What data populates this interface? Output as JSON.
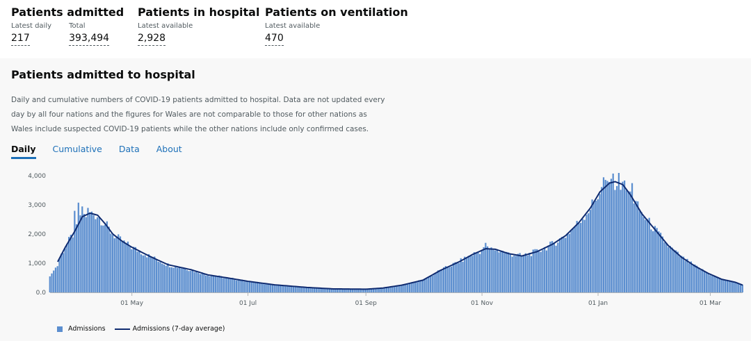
{
  "metrics": [
    {
      "title": "Patients admitted",
      "subs": [
        {
          "label": "Latest daily",
          "value": "217"
        },
        {
          "label": "Total",
          "value": "393,494"
        }
      ]
    },
    {
      "title": "Patients in hospital",
      "subs": [
        {
          "label": "Latest available",
          "value": "2,928"
        }
      ]
    },
    {
      "title": "Patients on ventilation",
      "subs": [
        {
          "label": "Latest available",
          "value": "470"
        }
      ]
    }
  ],
  "card": {
    "title": "Patients admitted to hospital",
    "description": "Daily and cumulative numbers of COVID-19 patients admitted to hospital. Data are not updated every day by all four nations and the figures for Wales are not comparable to those for other nations as Wales include suspected COVID-19 patients while the other nations include only confirmed cases.",
    "tabs": [
      {
        "label": "Daily",
        "active": true
      },
      {
        "label": "Cumulative",
        "active": false
      },
      {
        "label": "Data",
        "active": false
      },
      {
        "label": "About",
        "active": false
      }
    ]
  },
  "chart_data": {
    "type": "bar",
    "x_start": "2020-03-19",
    "x_end": "2021-03-18",
    "xticks": [
      {
        "date": "2020-05-01",
        "label": "01 May"
      },
      {
        "date": "2020-07-01",
        "label": "01 Jul"
      },
      {
        "date": "2020-09-01",
        "label": "01 Sep"
      },
      {
        "date": "2020-11-01",
        "label": "01 Nov"
      },
      {
        "date": "2021-01-01",
        "label": "01 Jan"
      },
      {
        "date": "2021-03-01",
        "label": "01 Mar"
      }
    ],
    "yticks": [
      {
        "value": 0,
        "label": "0.0"
      },
      {
        "value": 1000,
        "label": "1,000"
      },
      {
        "value": 2000,
        "label": "2,000"
      },
      {
        "value": 3000,
        "label": "3,000"
      },
      {
        "value": 4000,
        "label": "4,000"
      }
    ],
    "ylim": [
      0,
      4100
    ],
    "grid": false,
    "legend_position": "bottom-left",
    "average_key_dates": [
      "2020-03-23",
      "2020-03-27",
      "2020-04-01",
      "2020-04-05",
      "2020-04-09",
      "2020-04-13",
      "2020-04-17",
      "2020-04-21",
      "2020-04-26",
      "2020-05-01",
      "2020-05-10",
      "2020-05-20",
      "2020-06-01",
      "2020-06-10",
      "2020-06-20",
      "2020-07-01",
      "2020-07-15",
      "2020-08-01",
      "2020-08-15",
      "2020-09-01",
      "2020-09-10",
      "2020-09-20",
      "2020-10-01",
      "2020-10-10",
      "2020-10-20",
      "2020-10-27",
      "2020-11-03",
      "2020-11-08",
      "2020-11-15",
      "2020-11-22",
      "2020-11-30",
      "2020-12-08",
      "2020-12-15",
      "2020-12-22",
      "2020-12-28",
      "2021-01-02",
      "2021-01-07",
      "2021-01-10",
      "2021-01-14",
      "2021-01-18",
      "2021-01-24",
      "2021-01-31",
      "2021-02-07",
      "2021-02-14",
      "2021-02-21",
      "2021-02-28",
      "2021-03-07",
      "2021-03-14",
      "2021-03-18"
    ],
    "average_key_values": [
      1050,
      1550,
      2100,
      2600,
      2720,
      2650,
      2350,
      2000,
      1750,
      1550,
      1250,
      950,
      780,
      600,
      500,
      380,
      260,
      170,
      120,
      110,
      150,
      250,
      420,
      750,
      1050,
      1300,
      1500,
      1480,
      1330,
      1250,
      1400,
      1650,
      1950,
      2400,
      2900,
      3450,
      3750,
      3800,
      3700,
      3350,
      2700,
      2150,
      1600,
      1200,
      900,
      650,
      450,
      350,
      250
    ],
    "bar_highlights": [
      {
        "date": "2020-04-01",
        "value": 2800
      },
      {
        "date": "2020-04-03",
        "value": 3080
      },
      {
        "date": "2020-04-05",
        "value": 2950
      },
      {
        "date": "2020-04-08",
        "value": 2900
      },
      {
        "date": "2020-11-03",
        "value": 1700
      },
      {
        "date": "2021-01-04",
        "value": 3950
      },
      {
        "date": "2021-01-08",
        "value": 3900
      },
      {
        "date": "2021-01-12",
        "value": 4100
      },
      {
        "date": "2021-01-14",
        "value": 3800
      },
      {
        "date": "2021-01-19",
        "value": 3750
      }
    ],
    "series": [
      {
        "name": "Admissions",
        "type": "bar",
        "color": "#5b8ecf"
      },
      {
        "name": "Admissions (7-day average)",
        "type": "line",
        "color": "#0f2b70"
      }
    ]
  }
}
